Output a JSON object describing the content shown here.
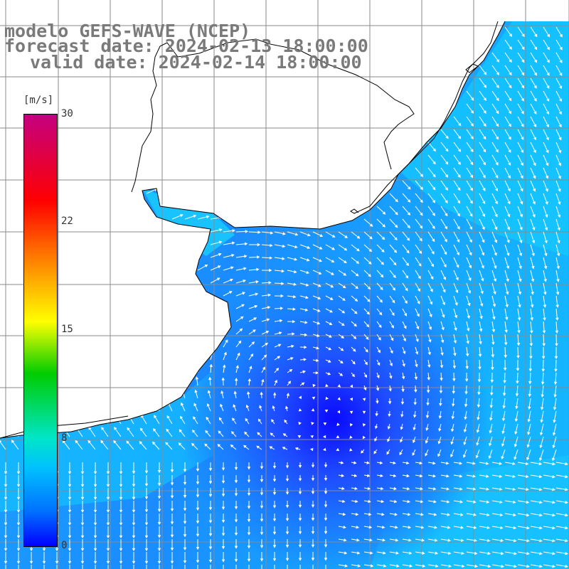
{
  "title": {
    "line1": "modelo GEFS-WAVE (NCEP)",
    "line2": "forecast date: 2024-02-13 18:00:00",
    "line3": "valid date: 2024-02-14 18:00:00"
  },
  "colorbar": {
    "unit": "[m/s]",
    "ticks": [
      "30",
      "22",
      "15",
      "8",
      "0"
    ],
    "colors": [
      "#c40080",
      "#ff0000",
      "#ff7a00",
      "#ffff00",
      "#00cc00",
      "#00e6c8",
      "#00c0ff",
      "#0070ff",
      "#0000ff"
    ]
  },
  "map": {
    "land_color": "#ffffff",
    "grid_color": "#8a8a8a",
    "arrow_color": "#ffffff",
    "low_wind_center_color": "#0a0aff",
    "high_wind_color": "#14c8ff"
  }
}
